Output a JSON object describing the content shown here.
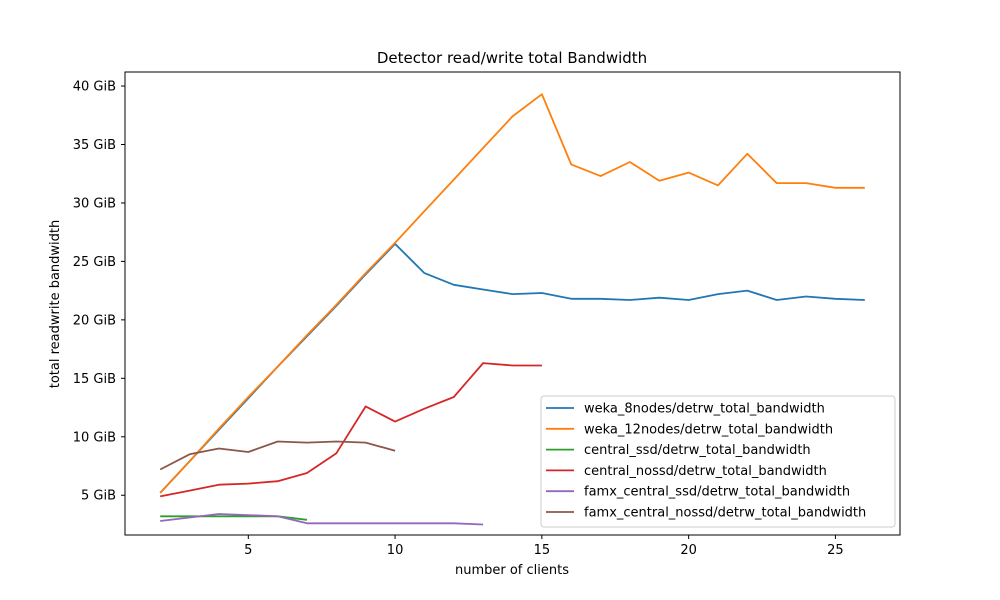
{
  "chart_data": {
    "type": "line",
    "title": "Detector read/write total Bandwidth",
    "xlabel": "number of clients",
    "ylabel": "total readwrite bandwidth",
    "ylabel_color": "#8c564b",
    "xlim": [
      0.8,
      27.2
    ],
    "ylim": [
      1.6,
      41.2
    ],
    "x_ticks": [
      5,
      10,
      15,
      20,
      25
    ],
    "x_tick_labels": [
      "5",
      "10",
      "15",
      "20",
      "25"
    ],
    "y_ticks": [
      5,
      10,
      15,
      20,
      25,
      30,
      35,
      40
    ],
    "y_tick_labels": [
      "5 GiB",
      "10 GiB",
      "15 GiB",
      "20 GiB",
      "25 GiB",
      "30 GiB",
      "35 GiB",
      "40 GiB"
    ],
    "grid": false,
    "legend_position": "lower-right",
    "series": [
      {
        "name": "weka_8nodes/detrw_total_bandwidth",
        "color": "#1f77b4",
        "x": [
          2,
          3,
          4,
          5,
          6,
          7,
          8,
          9,
          10,
          11,
          12,
          13,
          14,
          15,
          16,
          17,
          18,
          19,
          20,
          21,
          22,
          23,
          24,
          25,
          26
        ],
        "y": [
          5.2,
          7.9,
          10.6,
          13.3,
          16.0,
          18.6,
          21.2,
          23.9,
          26.5,
          24.0,
          23.0,
          22.6,
          22.2,
          22.3,
          21.8,
          21.8,
          21.7,
          21.9,
          21.7,
          22.2,
          22.5,
          21.7,
          22.0,
          21.8,
          21.7
        ]
      },
      {
        "name": "weka_12nodes/detrw_total_bandwidth",
        "color": "#ff7f0e",
        "x": [
          2,
          3,
          4,
          5,
          6,
          7,
          8,
          9,
          10,
          11,
          12,
          13,
          14,
          15,
          16,
          17,
          18,
          19,
          20,
          21,
          22,
          23,
          24,
          25,
          26
        ],
        "y": [
          5.2,
          7.9,
          10.7,
          13.4,
          16.0,
          18.7,
          21.3,
          24.0,
          26.6,
          29.3,
          32.0,
          34.7,
          37.4,
          39.3,
          33.3,
          32.3,
          33.5,
          31.9,
          32.6,
          31.5,
          34.2,
          31.7,
          31.7,
          31.3,
          31.3
        ]
      },
      {
        "name": "central_ssd/detrw_total_bandwidth",
        "color": "#2ca02c",
        "x": [
          2,
          3,
          4,
          5,
          6,
          7
        ],
        "y": [
          3.2,
          3.2,
          3.2,
          3.2,
          3.2,
          2.9
        ]
      },
      {
        "name": "central_nossd/detrw_total_bandwidth",
        "color": "#d62728",
        "x": [
          2,
          3,
          4,
          5,
          6,
          7,
          8,
          9,
          10,
          11,
          12,
          13,
          14,
          15
        ],
        "y": [
          4.9,
          5.4,
          5.9,
          6.0,
          6.2,
          6.9,
          8.6,
          12.6,
          11.3,
          12.4,
          13.4,
          16.3,
          16.1,
          16.1
        ]
      },
      {
        "name": "famx_central_ssd/detrw_total_bandwidth",
        "color": "#9467bd",
        "x": [
          2,
          3,
          4,
          5,
          6,
          7,
          8,
          9,
          10,
          11,
          12,
          13
        ],
        "y": [
          2.8,
          3.1,
          3.4,
          3.3,
          3.2,
          2.6,
          2.6,
          2.6,
          2.6,
          2.6,
          2.6,
          2.5
        ]
      },
      {
        "name": "famx_central_nossd/detrw_total_bandwidth",
        "color": "#8c564b",
        "x": [
          2,
          3,
          4,
          5,
          6,
          7,
          8,
          9,
          10
        ],
        "y": [
          7.2,
          8.5,
          9.0,
          8.7,
          9.6,
          9.5,
          9.6,
          9.5,
          8.8
        ]
      }
    ]
  }
}
